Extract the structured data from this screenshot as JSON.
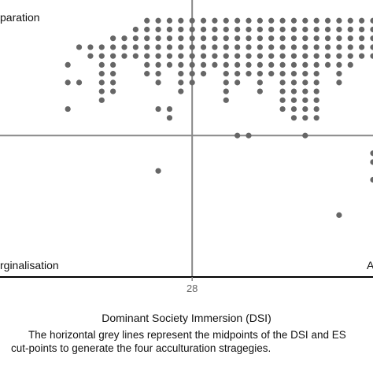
{
  "chart_data": {
    "type": "scatter",
    "xlabel": "Dominant Society Immersion (DSI)",
    "x_ticks": [
      28
    ],
    "x_tick_labels": [
      "28"
    ],
    "x_midpoint": 28,
    "y_midpoint": 16,
    "xlim": [
      19.5,
      36
    ],
    "ylim": [
      0,
      30
    ],
    "quadrant_labels": {
      "top_left": "paration",
      "bottom_left": "rginalisation",
      "bottom_right": "A"
    },
    "colors": {
      "points": "#666666",
      "midlines": "#888888",
      "axis": "#000000"
    },
    "columns": [
      {
        "x": 23.5,
        "y_max": 26,
        "y_min": 25
      },
      {
        "x": 24.0,
        "y_max": 26,
        "y_min": 20
      },
      {
        "x": 24.5,
        "y_max": 27,
        "y_min": 21
      },
      {
        "x": 25.0,
        "y_max": 27,
        "y_min": 25
      },
      {
        "x": 25.5,
        "y_max": 28,
        "y_min": 25
      },
      {
        "x": 26.0,
        "y_max": 29,
        "y_min": 23
      },
      {
        "x": 26.5,
        "y_max": 29,
        "y_min": 22
      },
      {
        "x": 27.0,
        "y_max": 29,
        "y_min": 24
      },
      {
        "x": 27.5,
        "y_max": 29,
        "y_min": 21
      },
      {
        "x": 28.0,
        "y_max": 29,
        "y_min": 22
      },
      {
        "x": 28.5,
        "y_max": 29,
        "y_min": 23
      },
      {
        "x": 29.0,
        "y_max": 29,
        "y_min": 24
      },
      {
        "x": 29.5,
        "y_max": 29,
        "y_min": 20
      },
      {
        "x": 30.0,
        "y_max": 29,
        "y_min": 22
      },
      {
        "x": 30.5,
        "y_max": 29,
        "y_min": 23
      },
      {
        "x": 31.0,
        "y_max": 29,
        "y_min": 21
      },
      {
        "x": 31.5,
        "y_max": 29,
        "y_min": 23
      },
      {
        "x": 32.0,
        "y_max": 29,
        "y_min": 19
      },
      {
        "x": 32.5,
        "y_max": 29,
        "y_min": 18
      },
      {
        "x": 33.0,
        "y_max": 29,
        "y_min": 18
      },
      {
        "x": 33.5,
        "y_max": 29,
        "y_min": 18
      },
      {
        "x": 34.0,
        "y_max": 29,
        "y_min": 24
      },
      {
        "x": 34.5,
        "y_max": 29,
        "y_min": 22
      },
      {
        "x": 35.0,
        "y_max": 29,
        "y_min": 24
      },
      {
        "x": 35.5,
        "y_max": 29,
        "y_min": 25
      },
      {
        "x": 36.0,
        "y_max": 29,
        "y_min": 25
      }
    ],
    "extra_points": [
      {
        "x": 22.5,
        "y": 24
      },
      {
        "x": 22.5,
        "y": 22
      },
      {
        "x": 22.5,
        "y": 19
      },
      {
        "x": 23.0,
        "y": 26
      },
      {
        "x": 23.0,
        "y": 22
      },
      {
        "x": 26.5,
        "y": 19
      },
      {
        "x": 27.0,
        "y": 19
      },
      {
        "x": 27.0,
        "y": 18
      },
      {
        "x": 26.5,
        "y": 12
      },
      {
        "x": 30.0,
        "y": 16
      },
      {
        "x": 30.5,
        "y": 16
      },
      {
        "x": 33.0,
        "y": 16
      },
      {
        "x": 34.5,
        "y": 7
      },
      {
        "x": 36.0,
        "y": 11
      },
      {
        "x": 36.0,
        "y": 14
      },
      {
        "x": 36.0,
        "y": 13
      }
    ]
  },
  "caption": {
    "line1": "The horizontal grey lines represent the midpoints of the DSI and ES",
    "line2": "cut-points to generate the four acculturation stragegies."
  }
}
